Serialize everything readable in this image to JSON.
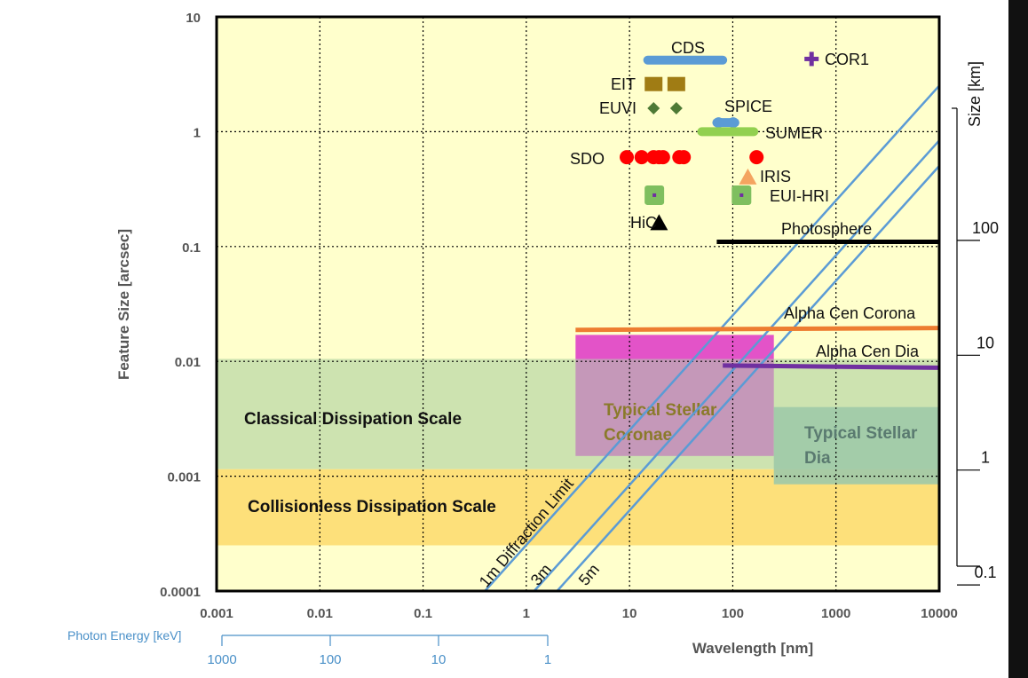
{
  "chart_data": {
    "type": "scatter",
    "xlabel": "Wavelength [nm]",
    "ylabel": "Feature Size [arcsec]",
    "x_scale": "log",
    "y_scale": "log",
    "xlim": [
      0.001,
      10000
    ],
    "ylim": [
      0.0001,
      10
    ],
    "grid": true,
    "x_ticks": [
      "0.001",
      "0.01",
      "0.1",
      "1",
      "10",
      "100",
      "1000",
      "10000"
    ],
    "y_ticks": [
      "10",
      "1",
      "0.1",
      "0.01",
      "0.001",
      "0.0001"
    ],
    "secondary_y": {
      "title": "Size [km]",
      "ticks": [
        {
          "label": "100",
          "arcsec": 0.14
        },
        {
          "label": "10",
          "arcsec": 0.014
        },
        {
          "label": "1",
          "arcsec": 0.0014
        },
        {
          "label": "0.1",
          "arcsec": 0.00014
        }
      ]
    },
    "photon_energy_axis": {
      "title": "Photon Energy [keV]",
      "ticks": [
        {
          "label": "1000",
          "wavelength_nm": 0.00124
        },
        {
          "label": "100",
          "wavelength_nm": 0.0124
        },
        {
          "label": "10",
          "wavelength_nm": 0.124
        },
        {
          "label": "1",
          "wavelength_nm": 1.24
        }
      ]
    },
    "regions": [
      {
        "label": "Classical Dissipation Scale",
        "x": [
          0.001,
          10000
        ],
        "y": [
          0.00115,
          0.0105
        ],
        "color": "#cde3b0"
      },
      {
        "label": "Collisionless Dissipation Scale",
        "x": [
          0.001,
          10000
        ],
        "y": [
          0.00025,
          0.00115
        ],
        "color": "#fde07a"
      },
      {
        "label": "Typical Stellar Coronae",
        "x": [
          3,
          250
        ],
        "y": [
          0.0015,
          0.0105
        ],
        "color": "#c48fba"
      },
      {
        "label": "",
        "x": [
          3,
          250
        ],
        "y": [
          0.0105,
          0.017
        ],
        "color": "#e040c8"
      },
      {
        "label": "Typical Stellar Dia",
        "x": [
          250,
          10000
        ],
        "y": [
          0.00085,
          0.004
        ],
        "color": "#9ec9a8"
      }
    ],
    "instruments": [
      {
        "name": "CDS",
        "kind": "bar",
        "x": [
          15,
          80
        ],
        "y": 4.2,
        "color": "#5b9bd5"
      },
      {
        "name": "COR1",
        "kind": "plus",
        "x": [
          580
        ],
        "y": 4.3,
        "color": "#7030a0"
      },
      {
        "name": "EIT",
        "kind": "square",
        "x": [
          17.1,
          28.4
        ],
        "y": 2.6,
        "color": "#a07c14"
      },
      {
        "name": "EUVI",
        "kind": "diamond",
        "x": [
          17.1,
          28.4
        ],
        "y": 1.6,
        "color": "#4e7a36"
      },
      {
        "name": "SPICE",
        "kind": "bar",
        "x": [
          70,
          105
        ],
        "y": 1.2,
        "color": "#5b9bd5"
      },
      {
        "name": "SUMER",
        "kind": "bar",
        "x": [
          50,
          160
        ],
        "y": 1.0,
        "color": "#92d050"
      },
      {
        "name": "SDO",
        "kind": "circle",
        "x": [
          9.4,
          13.1,
          17.1,
          19.3,
          21.1,
          30.4,
          33.5,
          170
        ],
        "y": 0.6,
        "color": "#ff0000"
      },
      {
        "name": "IRIS",
        "kind": "triangle",
        "x": [
          140
        ],
        "y": 0.4,
        "color": "#f4a460"
      },
      {
        "name": "EUI-HRI",
        "kind": "square",
        "x": [
          17.4,
          121.6
        ],
        "y": 0.28,
        "color": "#7fbf5f"
      },
      {
        "name": "HiC",
        "kind": "triangle",
        "x": [
          19.3
        ],
        "y": 0.16,
        "color": "#000000"
      }
    ],
    "lines": [
      {
        "name": "Photosphere",
        "x": [
          70,
          10000
        ],
        "y": [
          0.11,
          0.11
        ],
        "color": "#000000"
      },
      {
        "name": "Alpha Cen Corona",
        "x": [
          3,
          10000
        ],
        "y": [
          0.0188,
          0.0195
        ],
        "color": "#ed7d31"
      },
      {
        "name": "Alpha Cen Dia",
        "x": [
          80,
          10000
        ],
        "y": [
          0.0092,
          0.0088
        ],
        "color": "#7030a0"
      }
    ],
    "diffraction_limits": [
      {
        "name": "1m Diffraction Limit",
        "aperture_m": 1,
        "color": "#5b9bd5"
      },
      {
        "name": "3m",
        "aperture_m": 3,
        "color": "#5b9bd5"
      },
      {
        "name": "5m",
        "aperture_m": 5,
        "color": "#5b9bd5"
      }
    ],
    "diffraction_label_color": "#8b6914"
  }
}
